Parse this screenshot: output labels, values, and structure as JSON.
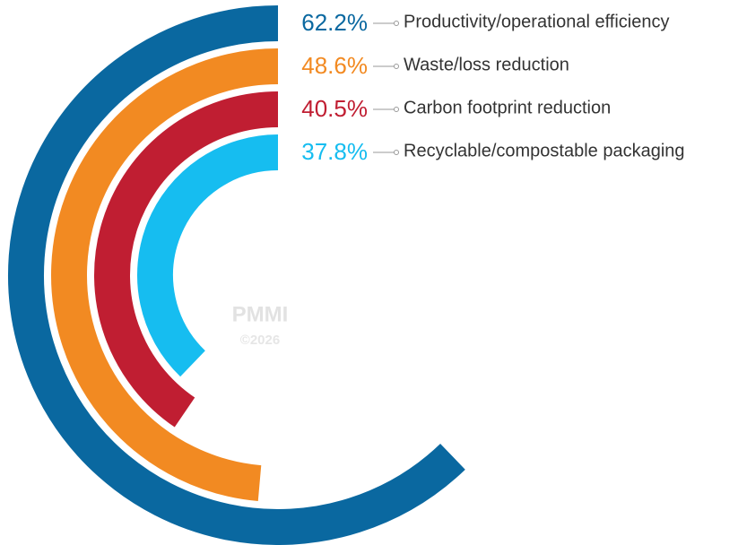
{
  "chart_data": {
    "type": "radial_bar",
    "categories": [
      "Productivity/operational efficiency",
      "Waste/loss reduction",
      "Carbon footprint reduction",
      "Recyclable/compostable packaging"
    ],
    "values": [
      62.2,
      48.6,
      40.5,
      37.8
    ],
    "value_labels": [
      "62.2%",
      "48.6%",
      "40.5%",
      "37.8%"
    ],
    "colors": [
      "#0a68a0",
      "#f28a22",
      "#c01e32",
      "#16bdf0"
    ],
    "ylim": [
      0,
      100
    ],
    "watermark": [
      "PMMI",
      "©2026"
    ]
  }
}
